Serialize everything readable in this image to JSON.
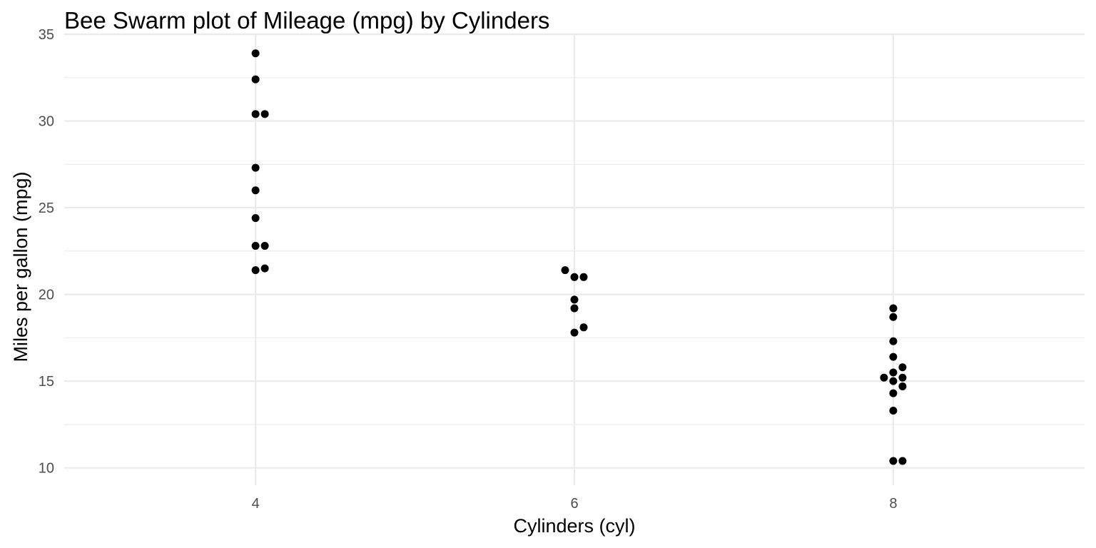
{
  "chart_data": {
    "type": "scatter",
    "subtype": "beeswarm",
    "title": "Bee Swarm plot of Mileage (mpg) by Cylinders",
    "xlabel": "Cylinders (cyl)",
    "ylabel": "Miles per gallon (mpg)",
    "xlim": [
      2.8,
      9.2
    ],
    "ylim": [
      9.0,
      35.0
    ],
    "xticks": [
      4,
      6,
      8
    ],
    "yticks": [
      10,
      15,
      20,
      25,
      30,
      35
    ],
    "grid": true,
    "legend": "none",
    "point_color": "#000000",
    "groups": [
      {
        "x": 4,
        "values": [
          22.8,
          24.4,
          22.8,
          32.4,
          30.4,
          33.9,
          21.5,
          27.3,
          26.0,
          30.4,
          21.4
        ]
      },
      {
        "x": 6,
        "values": [
          21.0,
          21.0,
          21.4,
          18.1,
          19.2,
          17.8,
          19.7
        ]
      },
      {
        "x": 8,
        "values": [
          18.7,
          14.3,
          16.4,
          17.3,
          15.2,
          10.4,
          10.4,
          14.7,
          15.5,
          15.2,
          13.3,
          19.2,
          15.8,
          15.0
        ]
      }
    ]
  }
}
